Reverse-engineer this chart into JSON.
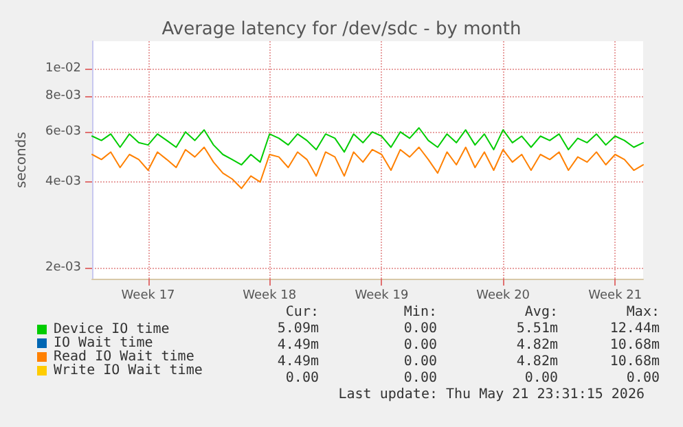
{
  "chart_data": {
    "type": "line",
    "title": "Average latency for /dev/sdc - by month",
    "ylabel": "seconds",
    "log": "y",
    "grid": true,
    "legend": "bottom",
    "marker": "none",
    "line_style": "solid",
    "categories": [
      null,
      null,
      null,
      null,
      null,
      null,
      "Week 17",
      null,
      null,
      null,
      null,
      null,
      null,
      null,
      null,
      null,
      null,
      null,
      null,
      "Week 18",
      null,
      null,
      null,
      null,
      null,
      null,
      null,
      null,
      null,
      null,
      null,
      "Week 19",
      null,
      null,
      null,
      null,
      null,
      null,
      null,
      null,
      null,
      null,
      null,
      null,
      "Week 20",
      null,
      null,
      null,
      null,
      null,
      null,
      null,
      null,
      null,
      null,
      null,
      "Week 21",
      null,
      null,
      null
    ],
    "ylim": [
      0.00183,
      0.0125
    ],
    "yticks": [
      {
        "value": 0.002,
        "label": "2e-03"
      },
      {
        "value": 0.004,
        "label": "4e-03"
      },
      {
        "value": 0.006,
        "label": "6e-03"
      },
      {
        "value": 0.008,
        "label": "8e-03"
      },
      {
        "value": 0.01,
        "label": "1e-02"
      }
    ],
    "series": [
      {
        "name": "Device IO time",
        "color": "#00cc00",
        "values": [
          0.0058,
          0.0056,
          0.0059,
          0.0053,
          0.0059,
          0.0055,
          0.0054,
          0.0059,
          0.0056,
          0.0053,
          0.006,
          0.0056,
          0.0061,
          0.0054,
          0.005,
          0.0048,
          0.0046,
          0.005,
          0.0047,
          0.0059,
          0.0057,
          0.0054,
          0.0059,
          0.0056,
          0.0052,
          0.0059,
          0.0057,
          0.0051,
          0.0059,
          0.0055,
          0.006,
          0.0058,
          0.0053,
          0.006,
          0.0057,
          0.0062,
          0.0056,
          0.0053,
          0.0059,
          0.0055,
          0.0061,
          0.0054,
          0.0059,
          0.0052,
          0.0061,
          0.0055,
          0.0058,
          0.0053,
          0.0058,
          0.0056,
          0.0059,
          0.0052,
          0.0057,
          0.0055,
          0.0059,
          0.0054,
          0.0058,
          0.0056,
          0.0053,
          0.0055
        ]
      },
      {
        "name": "IO Wait time",
        "color": "#0066b3",
        "values": [
          null,
          null,
          null,
          null,
          null,
          null,
          null,
          null,
          null,
          null,
          null,
          null,
          null,
          null,
          null,
          null,
          null,
          null,
          null,
          null,
          null,
          null,
          null,
          null,
          null,
          null,
          null,
          null,
          null,
          null,
          null,
          null,
          null,
          null,
          null,
          null,
          null,
          null,
          null,
          null,
          null,
          null,
          null,
          null,
          null,
          null,
          null,
          null,
          null,
          null,
          null,
          null,
          null,
          null,
          null,
          null,
          null,
          null,
          null,
          null
        ]
      },
      {
        "name": "Read IO Wait time",
        "color": "#ff8000",
        "values": [
          0.005,
          0.0048,
          0.0051,
          0.0045,
          0.005,
          0.0048,
          0.0044,
          0.0051,
          0.0048,
          0.0045,
          0.0052,
          0.0049,
          0.0053,
          0.0047,
          0.0043,
          0.0041,
          0.0038,
          0.0042,
          0.004,
          0.005,
          0.0049,
          0.0045,
          0.0051,
          0.0048,
          0.0042,
          0.0051,
          0.0049,
          0.0042,
          0.0051,
          0.0047,
          0.0052,
          0.005,
          0.0044,
          0.0052,
          0.0049,
          0.0053,
          0.0048,
          0.0043,
          0.0051,
          0.0046,
          0.0053,
          0.0045,
          0.0051,
          0.0044,
          0.0052,
          0.0047,
          0.005,
          0.0044,
          0.005,
          0.0048,
          0.0051,
          0.0044,
          0.0049,
          0.0047,
          0.0051,
          0.0046,
          0.005,
          0.0048,
          0.0044,
          0.0046
        ]
      },
      {
        "name": "Write IO Wait time",
        "color": "#ffcc00",
        "values": [
          null,
          null,
          null,
          null,
          null,
          null,
          null,
          null,
          null,
          null,
          null,
          null,
          null,
          null,
          null,
          null,
          null,
          null,
          null,
          null,
          null,
          null,
          null,
          null,
          null,
          null,
          null,
          null,
          null,
          null,
          null,
          null,
          null,
          null,
          null,
          null,
          null,
          null,
          null,
          null,
          null,
          null,
          null,
          null,
          null,
          null,
          null,
          null,
          null,
          null,
          null,
          null,
          null,
          null,
          null,
          null,
          null,
          null,
          null,
          null
        ]
      }
    ],
    "annotations": [
      "Cur: Min: Avg: Max:",
      "5.09m 0.00 5.51m 12.44m",
      "4.49m 0.00 4.82m 10.68m",
      "4.49m 0.00 4.82m 10.68m",
      "0.00 0.00 0.00 0.00",
      "Last update: Thu May 21 23:31:15 2026"
    ]
  }
}
